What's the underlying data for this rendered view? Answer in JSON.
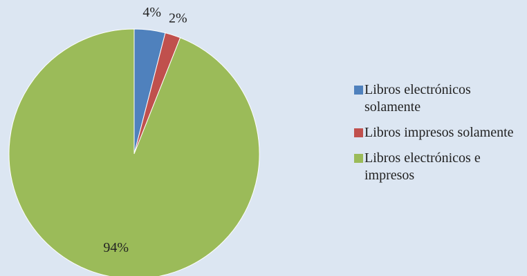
{
  "chart_data": {
    "type": "pie",
    "categories": [
      "Libros electrónicos solamente",
      "Libros impresos solamente",
      "Libros electrónicos e impresos"
    ],
    "values": [
      4,
      2,
      94
    ],
    "value_labels": [
      "4%",
      "2%",
      "94%"
    ],
    "colors": [
      "#4f81bd",
      "#c0504d",
      "#9bbb59"
    ],
    "legend": "right"
  }
}
